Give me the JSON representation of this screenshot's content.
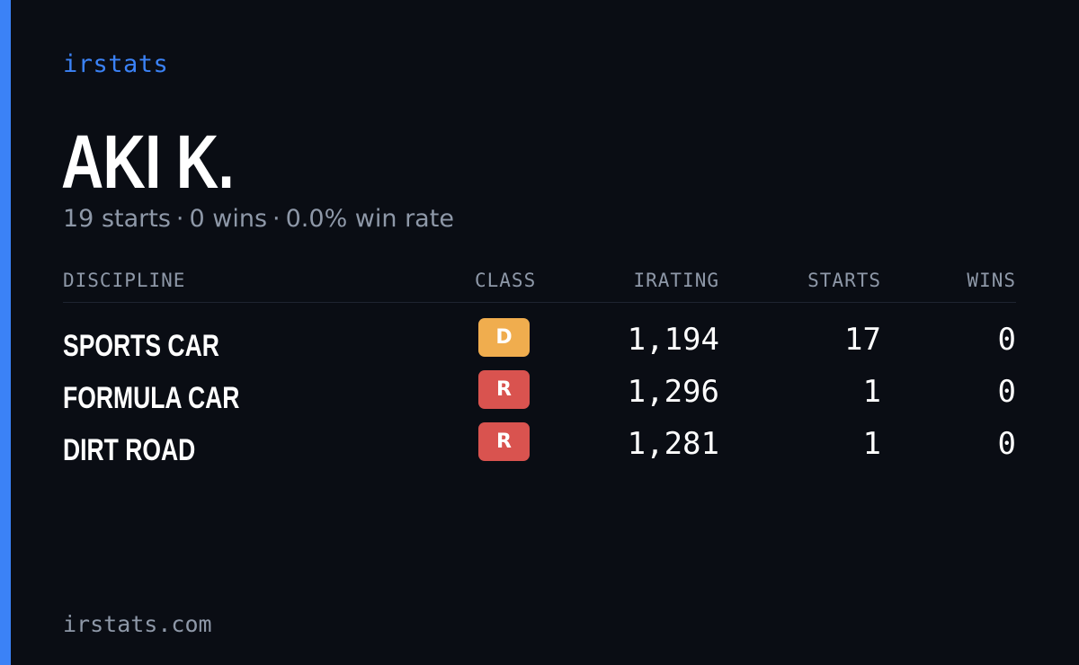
{
  "brand": "irstats",
  "driver": {
    "name": "AKI K.",
    "starts_text": "19 starts",
    "wins_text": "0 wins",
    "win_rate_text": "0.0% win rate",
    "separator": "·"
  },
  "table": {
    "headers": {
      "discipline": "DISCIPLINE",
      "class": "CLASS",
      "irating": "IRATING",
      "starts": "STARTS",
      "wins": "WINS"
    },
    "rows": [
      {
        "discipline": "SPORTS CAR",
        "class": "D",
        "class_color": "#f0ad4e",
        "irating": "1,194",
        "starts": "17",
        "wins": "0"
      },
      {
        "discipline": "FORMULA CAR",
        "class": "R",
        "class_color": "#d9534f",
        "irating": "1,296",
        "starts": "1",
        "wins": "0"
      },
      {
        "discipline": "DIRT ROAD",
        "class": "R",
        "class_color": "#d9534f",
        "irating": "1,281",
        "starts": "1",
        "wins": "0"
      }
    ]
  },
  "footer": "irstats.com",
  "colors": {
    "accent": "#3b82f6",
    "background": "#0a0d14",
    "muted_text": "#8e98a8"
  }
}
